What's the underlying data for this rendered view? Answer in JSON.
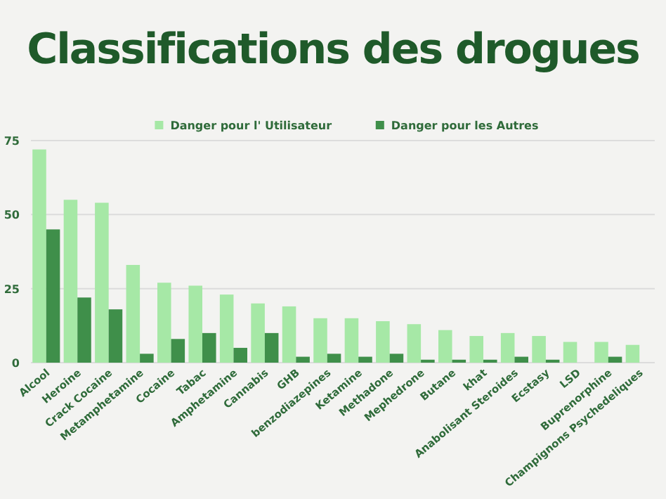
{
  "chart_data": {
    "type": "bar",
    "title": "Classifications des drogues",
    "categories": [
      "Alcool",
      "Heroine",
      "Crack Cocaine",
      "Metamphetamine",
      "Cocaine",
      "Tabac",
      "Amphetamine",
      "Cannabis",
      "GHB",
      "benzodiazepines",
      "Ketamine",
      "Methadone",
      "Mephedrone",
      "Butane",
      "khat",
      "Anabolisant Steroides",
      "Ecstasy",
      "LSD",
      "Buprenorphine",
      "Champignons Psychedeliques"
    ],
    "series": [
      {
        "name": "Danger pour l' Utilisateur",
        "color": "#a6e8a6",
        "values": [
          72,
          55,
          54,
          33,
          27,
          26,
          23,
          20,
          19,
          15,
          15,
          14,
          13,
          11,
          9,
          10,
          9,
          7,
          7,
          6
        ]
      },
      {
        "name": "Danger pour les Autres",
        "color": "#3f8f4a",
        "values": [
          45,
          22,
          18,
          3,
          8,
          10,
          5,
          10,
          2,
          3,
          2,
          3,
          1,
          1,
          1,
          2,
          1,
          0,
          2,
          0
        ]
      }
    ],
    "ylim": [
      0,
      75
    ],
    "yticks": [
      0,
      25,
      50,
      75
    ],
    "grid": "y",
    "legend": "top"
  }
}
